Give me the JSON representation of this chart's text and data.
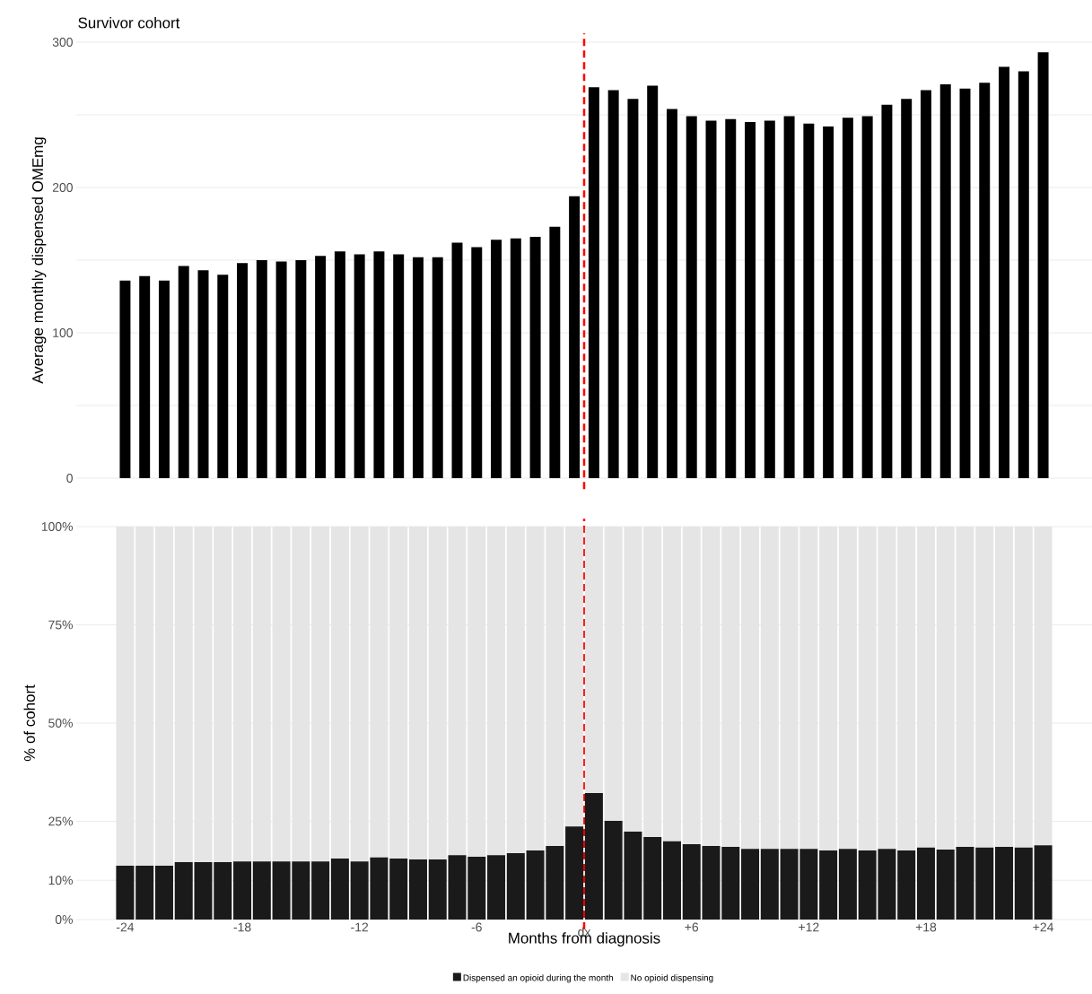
{
  "chart_data": [
    {
      "type": "bar",
      "title": "Survivor cohort",
      "ylabel": "Average monthly dispensed OMEmg",
      "categories": [
        "-24",
        null,
        null,
        null,
        null,
        null,
        "-18",
        null,
        null,
        null,
        null,
        null,
        "-12",
        null,
        null,
        null,
        null,
        null,
        "-6",
        null,
        null,
        null,
        null,
        null,
        null,
        null,
        null,
        null,
        null,
        "+6",
        null,
        null,
        null,
        null,
        null,
        "+12",
        null,
        null,
        null,
        null,
        null,
        "+18",
        null,
        null,
        null,
        null,
        null,
        "+24"
      ],
      "series": [
        {
          "color": "#000000",
          "values": [
            136,
            139,
            136,
            146,
            143,
            140,
            148,
            150,
            149,
            150,
            153,
            156,
            154,
            156,
            154,
            152,
            152,
            162,
            159,
            164,
            165,
            166,
            173,
            194,
            269,
            267,
            261,
            270,
            254,
            249,
            246,
            247,
            245,
            246,
            249,
            244,
            242,
            248,
            249,
            257,
            261,
            267,
            271,
            268,
            272,
            283,
            280,
            293
          ]
        }
      ],
      "ylim": [
        0,
        300
      ],
      "yticks": [
        0,
        {
          "value": 50,
          "label": null
        },
        100,
        {
          "value": 150,
          "label": null
        },
        200,
        {
          "value": 250,
          "label": null
        },
        300
      ],
      "grid": "y",
      "tick_labels": "y"
    },
    {
      "type": "bar",
      "stacked": true,
      "xlabel": "Months from diagnosis",
      "ylabel": "% of cohort",
      "categories": [
        "-24",
        null,
        null,
        null,
        null,
        null,
        "-18",
        null,
        null,
        null,
        null,
        null,
        "-12",
        null,
        null,
        null,
        null,
        null,
        "-6",
        null,
        null,
        null,
        null,
        null,
        null,
        null,
        null,
        null,
        null,
        "+6",
        null,
        null,
        null,
        null,
        null,
        "+12",
        null,
        null,
        null,
        null,
        null,
        "+18",
        null,
        null,
        null,
        null,
        null,
        "+24"
      ],
      "series": [
        {
          "name": "Dispensed an opioid during the month",
          "color": "#1a1a1a",
          "values": [
            13.7,
            13.7,
            13.7,
            14.6,
            14.6,
            14.6,
            14.8,
            14.8,
            14.8,
            14.8,
            14.8,
            15.5,
            14.8,
            15.8,
            15.5,
            15.3,
            15.3,
            16.4,
            16.0,
            16.4,
            16.9,
            17.6,
            18.7,
            23.7,
            32.2,
            25.1,
            22.4,
            21.0,
            19.9,
            19.2,
            18.7,
            18.5,
            18.0,
            18.0,
            18.0,
            18.0,
            17.6,
            18.0,
            17.6,
            18.0,
            17.6,
            18.3,
            17.8,
            18.5,
            18.3,
            18.5,
            18.3,
            18.9
          ]
        },
        {
          "name": "No opioid dispensing",
          "color": "#e5e5e5",
          "values": [
            86.3,
            86.3,
            86.3,
            85.4,
            85.4,
            85.4,
            85.2,
            85.2,
            85.2,
            85.2,
            85.2,
            84.5,
            85.2,
            84.2,
            84.5,
            84.7,
            84.7,
            83.6,
            84.0,
            83.6,
            83.1,
            82.4,
            81.3,
            76.3,
            67.8,
            74.9,
            77.6,
            79.0,
            80.1,
            80.8,
            81.3,
            81.5,
            82.0,
            82.0,
            82.0,
            82.0,
            82.4,
            82.0,
            82.4,
            82.0,
            82.4,
            81.7,
            82.2,
            81.5,
            81.7,
            81.5,
            81.7,
            81.1
          ]
        }
      ],
      "ylim": [
        0,
        100
      ],
      "yticks": [
        {
          "value": 0,
          "label": "0%"
        },
        {
          "value": 10,
          "label": "10%"
        },
        {
          "value": 25,
          "label": "25%"
        },
        {
          "value": 50,
          "label": "50%"
        },
        {
          "value": 75,
          "label": "75%"
        },
        {
          "value": 100,
          "label": "100%"
        }
      ],
      "grid": "y",
      "legend": "bottom",
      "annotations": [
        "dx"
      ]
    }
  ]
}
